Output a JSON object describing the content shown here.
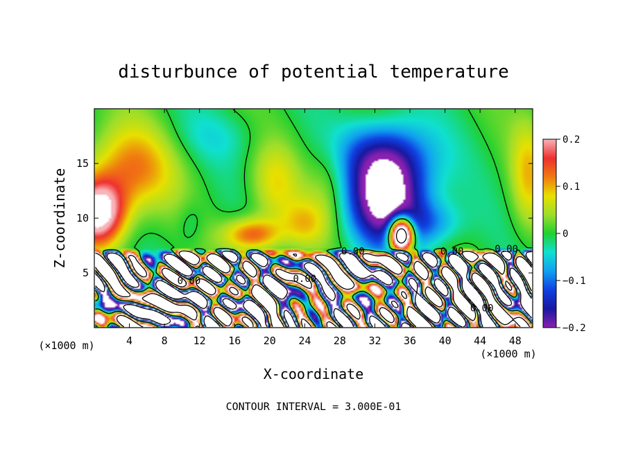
{
  "chart_data": {
    "type": "heatmap",
    "title": "disturbunce of potential temperature",
    "xlabel": "X-coordinate",
    "ylabel": "Z-coordinate",
    "x_unit_left": "(×1000 m)",
    "x_unit_right": "(×1000 m)",
    "footer": "CONTOUR INTERVAL = 3.000E-01",
    "xlim": [
      0,
      50
    ],
    "ylim": [
      0,
      20
    ],
    "x_ticks": [
      4,
      8,
      12,
      16,
      20,
      24,
      28,
      32,
      36,
      40,
      44,
      48
    ],
    "y_ticks": [
      5,
      10,
      15
    ],
    "colorbar": {
      "vmin": -0.2,
      "vmax": 0.2,
      "tick_labels": [
        "0.2",
        "0.1",
        "0",
        "−0.1",
        "−0.2"
      ],
      "tick_values": [
        0.2,
        0.1,
        0,
        -0.1,
        -0.2
      ]
    },
    "contour_labels": [
      {
        "text": "0.00",
        "x": 29.5,
        "z": 7.0
      },
      {
        "text": "0.00",
        "x": 40.8,
        "z": 7.0
      },
      {
        "text": "0.00",
        "x": 47.0,
        "z": 7.2
      },
      {
        "text": "0.00",
        "x": 10.8,
        "z": 4.3
      },
      {
        "text": "0.00",
        "x": 24.0,
        "z": 4.5
      },
      {
        "text": "0.00",
        "x": 44.2,
        "z": 1.8
      }
    ],
    "field_features": [
      {
        "kind": "positive",
        "x": 0.5,
        "z": 10.5,
        "amp": 0.25,
        "sx": 3,
        "sz": 3
      },
      {
        "kind": "positive",
        "x": 4.0,
        "z": 14.5,
        "amp": 0.12,
        "sx": 5,
        "sz": 4
      },
      {
        "kind": "positive",
        "x": 18.0,
        "z": 8.5,
        "amp": 0.14,
        "sx": 3.2,
        "sz": 1.5
      },
      {
        "kind": "positive",
        "x": 20.5,
        "z": 13.0,
        "amp": 0.07,
        "sx": 2.8,
        "sz": 4
      },
      {
        "kind": "positive",
        "x": 24.0,
        "z": 9.5,
        "amp": 0.07,
        "sx": 2.5,
        "sz": 2.2
      },
      {
        "kind": "positive",
        "x": 27.0,
        "z": 13.0,
        "amp": 0.05,
        "sx": 2.5,
        "sz": 4
      },
      {
        "kind": "positive",
        "x": 35.0,
        "z": 8.5,
        "amp": 0.55,
        "sx": 1.3,
        "sz": 1.5
      },
      {
        "kind": "positive",
        "x": 49.5,
        "z": 14.0,
        "amp": 0.08,
        "sx": 2,
        "sz": 5
      },
      {
        "kind": "negative",
        "x": 33.5,
        "z": 12.0,
        "amp": -0.26,
        "sx": 4.5,
        "sz": 4.5
      },
      {
        "kind": "negative",
        "x": 33.0,
        "z": 16.0,
        "amp": -0.09,
        "sx": 5.5,
        "sz": 3
      },
      {
        "kind": "negative",
        "x": 38.5,
        "z": 9.5,
        "amp": -0.07,
        "sx": 3.5,
        "sz": 2
      },
      {
        "kind": "negative",
        "x": 11.0,
        "z": 9.5,
        "amp": -0.03,
        "sx": 1.5,
        "sz": 2
      },
      {
        "kind": "negative",
        "x": 14.0,
        "z": 17.5,
        "amp": -0.03,
        "sx": 6,
        "sz": 2.5
      }
    ]
  }
}
